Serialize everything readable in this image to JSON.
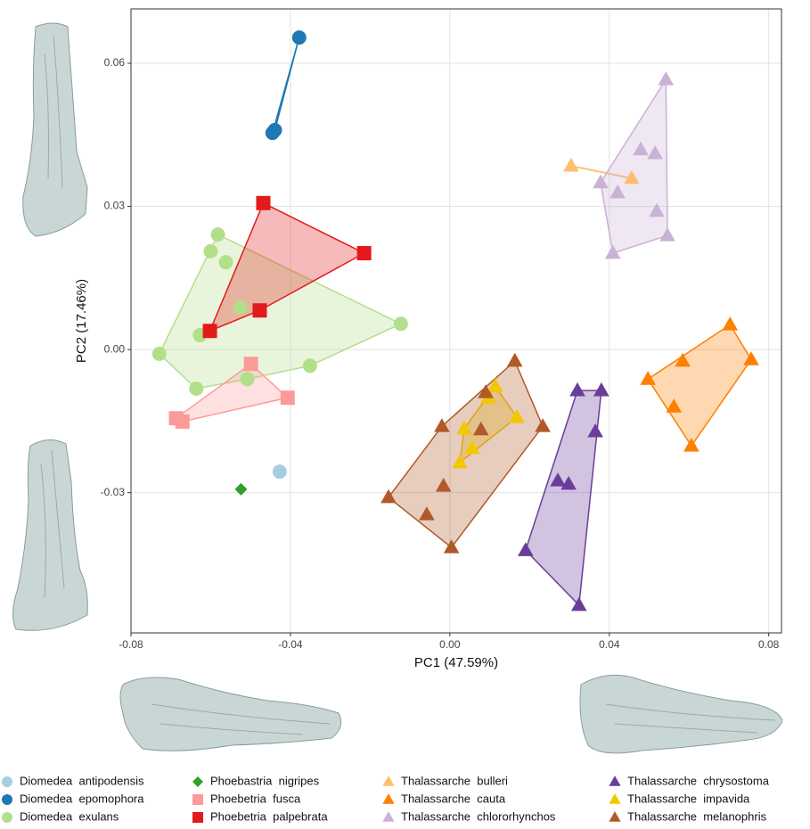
{
  "chart_data": {
    "type": "scatter",
    "x_label": "PC1 (47.59%)",
    "y_label": "PC2 (17.46%)",
    "xlim": [
      -0.08,
      0.0832
    ],
    "ylim": [
      -0.0594,
      0.0714
    ],
    "xticks": [
      -0.08,
      -0.04,
      {
        "value": 0,
        "label": "0.00"
      },
      0.04,
      0.08
    ],
    "yticks": [
      -0.03,
      {
        "value": 0,
        "label": "0.00"
      },
      0.03,
      0.06
    ],
    "grid": true,
    "series": [
      {
        "name": "Diomedea  antipodensis",
        "color": "#a6cee3",
        "shape": "circle",
        "x": [
          -0.0427
        ],
        "values": [
          -0.0256
        ]
      },
      {
        "name": "Diomedea  epomophora",
        "color": "#1f78b4",
        "shape": "circle",
        "x": [
          -0.0378,
          -0.0439,
          -0.0445
        ],
        "values": [
          0.0654,
          0.046,
          0.0454
        ]
      },
      {
        "name": "Diomedea  exulans",
        "color": "#b2df8a",
        "shape": "circle",
        "x": [
          -0.0582,
          -0.06,
          -0.0562,
          -0.0526,
          -0.0627,
          -0.0729,
          -0.0636,
          -0.0508,
          -0.0351,
          -0.0123
        ],
        "values": [
          0.0241,
          0.0206,
          0.0183,
          0.0088,
          0.003,
          -0.0009,
          -0.0082,
          -0.0062,
          -0.0034,
          0.0054
        ]
      },
      {
        "name": "Phoebastria  nigripes",
        "color": "#33a02c",
        "shape": "diamond",
        "x": [
          -0.0524
        ],
        "values": [
          -0.0293
        ]
      },
      {
        "name": "Phoebetria  fusca",
        "color": "#fb9a99",
        "shape": "square",
        "x": [
          -0.0499,
          -0.0407,
          -0.0687,
          -0.0671
        ],
        "values": [
          -0.003,
          -0.0101,
          -0.0144,
          -0.0151
        ]
      },
      {
        "name": "Phoebetria  palpebrata",
        "color": "#e31a1c",
        "shape": "square",
        "x": [
          -0.0468,
          -0.0215,
          -0.0477,
          -0.0602
        ],
        "values": [
          0.0307,
          0.0202,
          0.0082,
          0.0039
        ]
      },
      {
        "name": "Thalassarche  bulleri",
        "color": "#fdbf6f",
        "shape": "triangle",
        "x": [
          0.0304,
          0.0456
        ],
        "values": [
          0.0385,
          0.0359
        ]
      },
      {
        "name": "Thalassarche  cauta",
        "color": "#ff7f00",
        "shape": "triangle",
        "x": [
          0.0703,
          0.0756,
          0.0584,
          0.0497,
          0.0562,
          0.0606
        ],
        "values": [
          0.0052,
          -0.0021,
          -0.0024,
          -0.0062,
          -0.012,
          -0.0202
        ]
      },
      {
        "name": "Thalassarche  chlororhynchos",
        "color": "#cab2d6",
        "shape": "triangle",
        "x": [
          0.0542,
          0.0479,
          0.0515,
          0.0378,
          0.0421,
          0.0519,
          0.0546,
          0.0409
        ],
        "values": [
          0.0566,
          0.0419,
          0.0411,
          0.035,
          0.0329,
          0.029,
          0.0239,
          0.0202
        ]
      },
      {
        "name": "Thalassarche  chrysostoma",
        "color": "#6a3d9a",
        "shape": "triangle",
        "x": [
          0.032,
          0.038,
          0.0365,
          0.0271,
          0.0298,
          0.019,
          0.0324
        ],
        "values": [
          -0.0086,
          -0.0086,
          -0.0172,
          -0.0275,
          -0.0282,
          -0.0421,
          -0.0536
        ]
      },
      {
        "name": "Thalassarche  impavida",
        "color": "#f2c800",
        "shape": "triangle",
        "x": [
          0.0114,
          0.0096,
          0.0168,
          0.0036,
          0.0056,
          0.0025
        ],
        "values": [
          -0.0077,
          -0.0101,
          -0.0142,
          -0.0166,
          -0.0207,
          -0.0237
        ]
      },
      {
        "name": "Thalassarche  melanophris",
        "color": "#b15928",
        "shape": "triangle",
        "x": [
          0.0163,
          0.009,
          0.0078,
          -0.002,
          0.0233,
          -0.0016,
          -0.0154,
          -0.0058,
          0.0004
        ],
        "values": [
          -0.0024,
          -0.009,
          -0.0168,
          -0.0161,
          -0.0161,
          -0.0286,
          -0.031,
          -0.0346,
          -0.0415
        ]
      }
    ]
  }
}
